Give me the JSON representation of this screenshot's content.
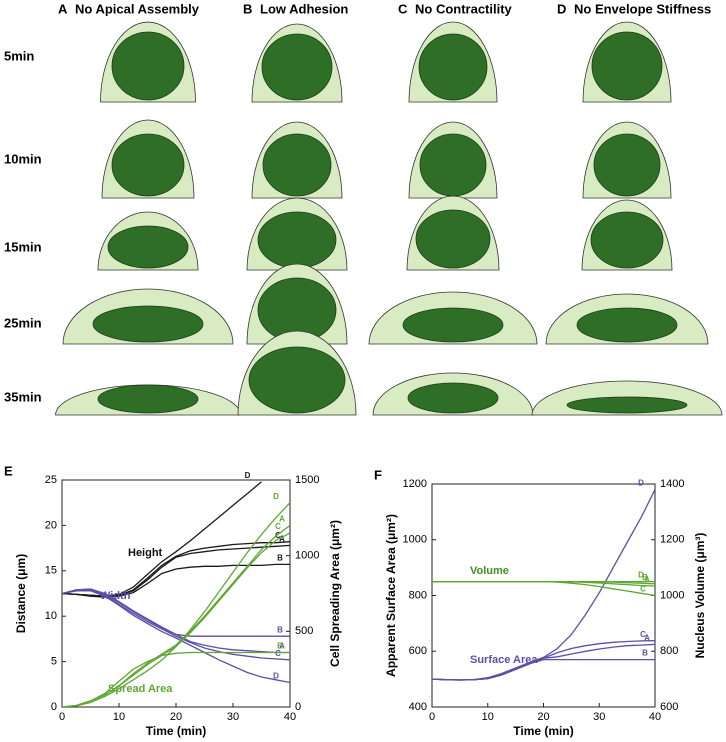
{
  "cell_grid": {
    "columns": [
      {
        "letter": "A",
        "title": "No Apical Assembly"
      },
      {
        "letter": "B",
        "title": "Low Adhesion"
      },
      {
        "letter": "C",
        "title": "No Contractility"
      },
      {
        "letter": "D",
        "title": "No Envelope Stiffness"
      }
    ],
    "rows": [
      "5min",
      "10min",
      "15min",
      "25min",
      "35min"
    ]
  },
  "chart_data": [
    {
      "type": "line",
      "panel": "E",
      "xlabel": "Time (min)",
      "ylabel": "Distance (μm)",
      "y2label": "Cell Spreading Area (μm²)",
      "x": [
        0,
        2.5,
        5,
        7.5,
        10,
        12.5,
        15,
        17.5,
        20,
        22.5,
        25,
        27.5,
        30,
        32.5,
        35,
        37.5,
        40
      ],
      "xlim": [
        0,
        40
      ],
      "xticks": [
        0,
        10,
        20,
        30,
        40
      ],
      "ylim": [
        0,
        25
      ],
      "yticks": [
        0,
        5,
        10,
        15,
        20,
        25
      ],
      "y2lim": [
        0,
        1500
      ],
      "y2ticks": [
        0,
        500,
        1000,
        1500
      ],
      "annotations": [
        {
          "text": "Height",
          "color": "#111111"
        },
        {
          "text": "Width",
          "color": "#5b4fa8"
        },
        {
          "text": "Spread Area",
          "color": "#5ea832"
        }
      ],
      "series": [
        {
          "name": "A",
          "color": "#1a1a1a",
          "values": [
            12.5,
            12.4,
            12.3,
            12.2,
            12.3,
            12.8,
            14,
            15.4,
            16.5,
            16.9,
            17.1,
            17.3,
            17.4,
            17.5,
            17.6,
            17.7,
            17.8
          ]
        },
        {
          "name": "B",
          "color": "#1a1a1a",
          "values": [
            12.5,
            12.4,
            12.2,
            12.1,
            12.2,
            12.6,
            13.6,
            14.7,
            15.2,
            15.4,
            15.5,
            15.5,
            15.6,
            15.6,
            15.6,
            15.7,
            15.7
          ]
        },
        {
          "name": "C",
          "color": "#1a1a1a",
          "values": [
            12.5,
            12.4,
            12.3,
            12.2,
            12.3,
            12.9,
            14.2,
            15.6,
            16.6,
            17.2,
            17.5,
            17.7,
            17.9,
            18,
            18.1,
            18.1,
            18.2
          ]
        },
        {
          "name": "D",
          "color": "#1a1a1a",
          "values": [
            12.5,
            12.4,
            12.3,
            12.2,
            12.4,
            13.2,
            14.6,
            16,
            17.1,
            18.3,
            19.6,
            20.9,
            22.2,
            23.5,
            24.8,
            null,
            null
          ]
        },
        {
          "name": "A",
          "color": "#5b4fa8",
          "values": [
            12.5,
            12.9,
            13,
            12.5,
            11.6,
            10.6,
            9.7,
            8.8,
            8,
            7.2,
            6.8,
            6.5,
            6.3,
            6.2,
            6.1,
            6,
            6
          ]
        },
        {
          "name": "B",
          "color": "#5b4fa8",
          "values": [
            12.5,
            12.9,
            13,
            12.4,
            11.5,
            10.5,
            9.6,
            8.7,
            8,
            7.8,
            7.8,
            7.8,
            7.8,
            7.8,
            7.8,
            7.8,
            7.8
          ]
        },
        {
          "name": "C",
          "color": "#5b4fa8",
          "values": [
            12.5,
            12.8,
            12.9,
            12.3,
            11.3,
            10.3,
            9.4,
            8.6,
            7.8,
            7.1,
            6.5,
            6.1,
            5.8,
            5.6,
            5.4,
            5.3,
            5.2
          ]
        },
        {
          "name": "D",
          "color": "#5b4fa8",
          "values": [
            12.5,
            12.8,
            12.8,
            12.2,
            11.2,
            10.1,
            9.2,
            8.3,
            7.6,
            6.8,
            6,
            5.2,
            4.5,
            3.8,
            3.3,
            3,
            2.7
          ]
        },
        {
          "name": "A",
          "color": "#5ea832",
          "axis": "y2",
          "values": [
            0,
            10,
            40,
            80,
            140,
            220,
            290,
            350,
            410,
            500,
            600,
            710,
            820,
            930,
            1040,
            1130,
            1200
          ]
        },
        {
          "name": "B",
          "color": "#5ea832",
          "axis": "y2",
          "values": [
            0,
            10,
            40,
            90,
            170,
            250,
            300,
            340,
            355,
            360,
            360,
            360,
            360,
            360,
            360,
            360,
            360
          ]
        },
        {
          "name": "C",
          "color": "#5ea832",
          "axis": "y2",
          "values": [
            0,
            10,
            40,
            80,
            140,
            210,
            280,
            340,
            400,
            490,
            590,
            700,
            810,
            920,
            1020,
            1100,
            1150
          ]
        },
        {
          "name": "D",
          "color": "#5ea832",
          "axis": "y2",
          "values": [
            0,
            8,
            30,
            70,
            120,
            180,
            240,
            310,
            400,
            510,
            630,
            760,
            890,
            1020,
            1140,
            1250,
            1350
          ]
        }
      ]
    },
    {
      "type": "line",
      "panel": "F",
      "xlabel": "Time (min)",
      "ylabel": "Apparent Surface Area (μm²)",
      "y2label": "Nucleus Volume (μm³)",
      "x": [
        0,
        2.5,
        5,
        7.5,
        10,
        12.5,
        15,
        17.5,
        20,
        22.5,
        25,
        27.5,
        30,
        32.5,
        35,
        37.5,
        40
      ],
      "xlim": [
        0,
        40
      ],
      "xticks": [
        0,
        10,
        20,
        30,
        40
      ],
      "ylim": [
        400,
        1200
      ],
      "yticks": [
        400,
        600,
        800,
        1000,
        1200
      ],
      "y2lim": [
        600,
        1400
      ],
      "y2ticks": [
        600,
        800,
        1000,
        1200,
        1400
      ],
      "annotations": [
        {
          "text": "Volume",
          "color": "#3f8f22"
        },
        {
          "text": "Surface Area",
          "color": "#5b4fa8"
        }
      ],
      "series": [
        {
          "name": "A",
          "color": "#5b4fa8",
          "values": [
            500,
            498,
            497,
            498,
            502,
            515,
            535,
            555,
            575,
            580,
            590,
            600,
            608,
            615,
            620,
            622,
            625
          ]
        },
        {
          "name": "B",
          "color": "#5b4fa8",
          "values": [
            500,
            498,
            497,
            498,
            502,
            515,
            535,
            555,
            570,
            570,
            570,
            570,
            570,
            570,
            570,
            570,
            570
          ]
        },
        {
          "name": "C",
          "color": "#5b4fa8",
          "values": [
            500,
            498,
            497,
            498,
            502,
            515,
            535,
            555,
            575,
            595,
            610,
            620,
            627,
            632,
            635,
            637,
            638
          ]
        },
        {
          "name": "D",
          "color": "#5b4fa8",
          "values": [
            500,
            498,
            497,
            498,
            505,
            520,
            540,
            560,
            578,
            610,
            660,
            730,
            810,
            900,
            990,
            1080,
            1180
          ]
        },
        {
          "name": "A",
          "color": "#5ea832",
          "axis": "y2",
          "values": [
            1050,
            1050,
            1050,
            1050,
            1050,
            1050,
            1050,
            1050,
            1050,
            1050,
            1049,
            1047,
            1045,
            1042,
            1039,
            1036,
            1034
          ]
        },
        {
          "name": "B",
          "color": "#5ea832",
          "axis": "y2",
          "values": [
            1050,
            1050,
            1050,
            1050,
            1050,
            1050,
            1050,
            1050,
            1050,
            1050,
            1050,
            1050,
            1049,
            1048,
            1046,
            1044,
            1042
          ]
        },
        {
          "name": "C",
          "color": "#5ea832",
          "axis": "y2",
          "values": [
            1050,
            1050,
            1050,
            1050,
            1050,
            1050,
            1050,
            1050,
            1050,
            1048,
            1044,
            1039,
            1032,
            1024,
            1016,
            1008,
            1000
          ]
        },
        {
          "name": "D",
          "color": "#5ea832",
          "axis": "y2",
          "values": [
            1050,
            1050,
            1050,
            1050,
            1050,
            1050,
            1050,
            1050,
            1050,
            1050,
            1050,
            1050,
            1050,
            1050,
            1050,
            1050,
            1050
          ]
        }
      ]
    }
  ]
}
